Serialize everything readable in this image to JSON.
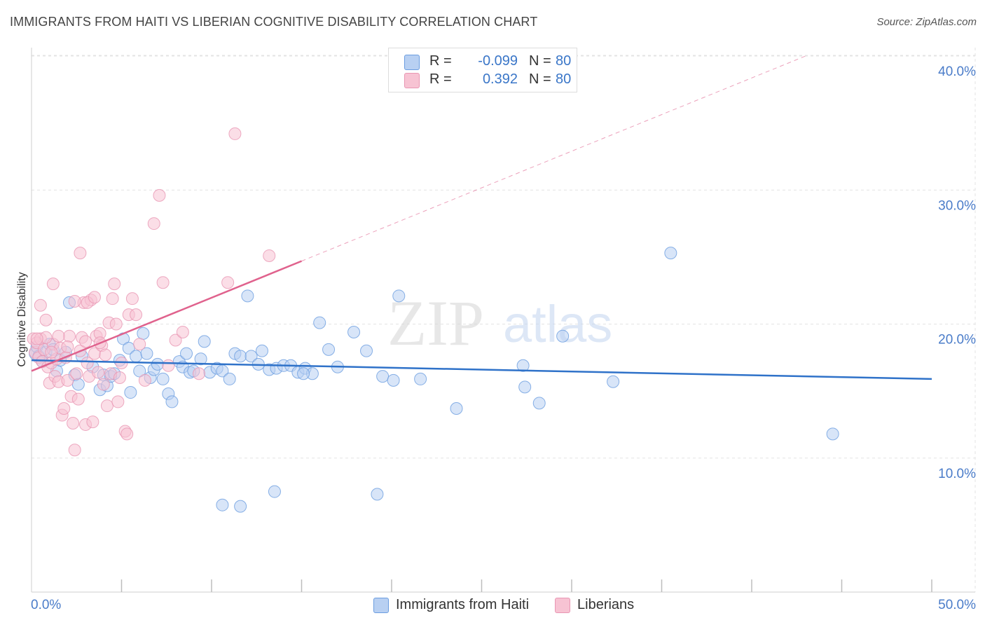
{
  "title": "IMMIGRANTS FROM HAITI VS LIBERIAN COGNITIVE DISABILITY CORRELATION CHART",
  "source": "Source: ZipAtlas.com",
  "watermark": {
    "zip": "ZIP",
    "atlas": "atlas"
  },
  "legend": {
    "rows": [
      {
        "r_label": "R =",
        "r_value": "-0.099",
        "n_label": "N =",
        "n_value": "80"
      },
      {
        "r_label": "R =",
        "r_value": "0.392",
        "n_label": "N =",
        "n_value": "80"
      }
    ]
  },
  "colors": {
    "haiti_fill": "#b8d0f2",
    "haiti_stroke": "#6b9de0",
    "haiti_line": "#2f72c9",
    "liberian_fill": "#f7c3d3",
    "liberian_stroke": "#e996b3",
    "liberian_line": "#e0628d",
    "grid": "#e3e3e3",
    "axis_label": "#4a7cc9"
  },
  "chart_data": {
    "type": "scatter",
    "xlabel": "",
    "ylabel": "Cognitive Disability",
    "xlim": [
      0,
      50
    ],
    "ylim": [
      0,
      40
    ],
    "x_tick_labels": [
      "0.0%",
      "50.0%"
    ],
    "y_ticks": [
      10,
      20,
      30,
      40
    ],
    "y_tick_labels": [
      "10.0%",
      "20.0%",
      "30.0%",
      "40.0%"
    ],
    "grid": true,
    "legend_position": "bottom",
    "series": [
      {
        "name": "Immigrants from Haiti",
        "trend": {
          "x": [
            0,
            50
          ],
          "y": [
            17.3,
            15.9
          ],
          "dashed_from": null
        },
        "points": [
          [
            0.2,
            17.8
          ],
          [
            0.3,
            18.3
          ],
          [
            0.4,
            17.6
          ],
          [
            0.6,
            17.2
          ],
          [
            0.8,
            17.9
          ],
          [
            1.0,
            18.5
          ],
          [
            1.2,
            18.1
          ],
          [
            1.4,
            16.5
          ],
          [
            1.6,
            17.3
          ],
          [
            1.9,
            17.9
          ],
          [
            2.1,
            21.6
          ],
          [
            2.4,
            16.2
          ],
          [
            2.6,
            15.5
          ],
          [
            2.8,
            17.6
          ],
          [
            3.4,
            16.8
          ],
          [
            3.8,
            15.1
          ],
          [
            4.0,
            16.2
          ],
          [
            4.2,
            15.4
          ],
          [
            4.4,
            16.1
          ],
          [
            4.6,
            16.3
          ],
          [
            4.9,
            17.3
          ],
          [
            5.1,
            18.9
          ],
          [
            5.4,
            18.2
          ],
          [
            5.5,
            14.9
          ],
          [
            5.8,
            17.6
          ],
          [
            6.0,
            16.5
          ],
          [
            6.2,
            19.3
          ],
          [
            6.4,
            17.8
          ],
          [
            6.6,
            16.0
          ],
          [
            6.8,
            16.6
          ],
          [
            7.0,
            17.0
          ],
          [
            7.3,
            15.9
          ],
          [
            7.6,
            14.8
          ],
          [
            7.8,
            14.2
          ],
          [
            8.2,
            17.2
          ],
          [
            8.4,
            16.8
          ],
          [
            8.6,
            17.8
          ],
          [
            8.8,
            16.4
          ],
          [
            9.0,
            16.5
          ],
          [
            9.4,
            17.4
          ],
          [
            9.6,
            18.7
          ],
          [
            9.9,
            16.4
          ],
          [
            10.3,
            16.7
          ],
          [
            10.6,
            16.5
          ],
          [
            11.0,
            15.9
          ],
          [
            11.3,
            17.8
          ],
          [
            11.6,
            17.6
          ],
          [
            12.0,
            22.1
          ],
          [
            12.2,
            17.6
          ],
          [
            12.6,
            17.0
          ],
          [
            12.8,
            18.0
          ],
          [
            13.2,
            16.6
          ],
          [
            13.6,
            16.7
          ],
          [
            14.0,
            16.9
          ],
          [
            14.4,
            16.9
          ],
          [
            14.8,
            16.4
          ],
          [
            15.2,
            16.7
          ],
          [
            15.6,
            16.3
          ],
          [
            16.0,
            20.1
          ],
          [
            16.5,
            18.1
          ],
          [
            17.0,
            16.8
          ],
          [
            17.9,
            19.4
          ],
          [
            18.6,
            18.0
          ],
          [
            19.5,
            16.1
          ],
          [
            20.4,
            22.1
          ],
          [
            21.6,
            15.9
          ],
          [
            23.6,
            13.7
          ],
          [
            27.3,
            16.9
          ],
          [
            27.4,
            15.3
          ],
          [
            28.2,
            14.1
          ],
          [
            29.5,
            19.1
          ],
          [
            32.3,
            15.7
          ],
          [
            35.5,
            25.3
          ],
          [
            44.5,
            11.8
          ],
          [
            15.1,
            16.3
          ],
          [
            11.6,
            6.4
          ],
          [
            10.6,
            6.5
          ],
          [
            20.1,
            15.8
          ],
          [
            13.5,
            7.5
          ],
          [
            19.2,
            7.3
          ]
        ]
      },
      {
        "name": "Liberians",
        "trend": {
          "x": [
            0,
            15
          ],
          "y": [
            16.5,
            24.7
          ],
          "dashed_to_x": 43
        },
        "points": [
          [
            0.1,
            18.9
          ],
          [
            0.2,
            17.9
          ],
          [
            0.3,
            18.6
          ],
          [
            0.4,
            17.5
          ],
          [
            0.5,
            18.9
          ],
          [
            0.6,
            17.2
          ],
          [
            0.7,
            18.1
          ],
          [
            0.8,
            20.3
          ],
          [
            0.9,
            16.8
          ],
          [
            1.0,
            15.6
          ],
          [
            1.1,
            17.1
          ],
          [
            1.2,
            18.5
          ],
          [
            1.3,
            16.1
          ],
          [
            1.4,
            17.4
          ],
          [
            1.5,
            15.7
          ],
          [
            1.6,
            18.2
          ],
          [
            1.7,
            13.2
          ],
          [
            1.8,
            13.7
          ],
          [
            1.9,
            17.5
          ],
          [
            2.0,
            15.8
          ],
          [
            2.1,
            19.1
          ],
          [
            2.2,
            14.6
          ],
          [
            2.3,
            12.6
          ],
          [
            2.4,
            10.6
          ],
          [
            2.5,
            16.3
          ],
          [
            2.6,
            14.4
          ],
          [
            2.7,
            18.0
          ],
          [
            2.8,
            19.0
          ],
          [
            2.9,
            21.6
          ],
          [
            3.0,
            12.5
          ],
          [
            3.1,
            17.1
          ],
          [
            3.2,
            16.1
          ],
          [
            3.3,
            21.8
          ],
          [
            3.4,
            12.7
          ],
          [
            3.5,
            17.8
          ],
          [
            3.6,
            19.1
          ],
          [
            3.7,
            16.4
          ],
          [
            3.8,
            19.3
          ],
          [
            3.9,
            18.4
          ],
          [
            4.0,
            15.5
          ],
          [
            4.2,
            13.9
          ],
          [
            4.3,
            20.1
          ],
          [
            4.4,
            16.3
          ],
          [
            4.5,
            21.9
          ],
          [
            4.6,
            23.0
          ],
          [
            4.7,
            20.0
          ],
          [
            4.8,
            14.2
          ],
          [
            4.9,
            16.0
          ],
          [
            5.0,
            17.1
          ],
          [
            5.2,
            12.0
          ],
          [
            5.3,
            11.8
          ],
          [
            5.4,
            20.7
          ],
          [
            5.6,
            21.9
          ],
          [
            5.8,
            20.7
          ],
          [
            6.0,
            18.5
          ],
          [
            6.3,
            15.8
          ],
          [
            6.8,
            27.5
          ],
          [
            7.1,
            29.6
          ],
          [
            7.3,
            23.1
          ],
          [
            7.6,
            16.9
          ],
          [
            8.0,
            18.8
          ],
          [
            8.4,
            19.4
          ],
          [
            9.3,
            16.3
          ],
          [
            10.9,
            23.1
          ],
          [
            11.3,
            34.2
          ],
          [
            13.2,
            25.1
          ],
          [
            0.5,
            21.4
          ],
          [
            1.2,
            23.0
          ],
          [
            2.4,
            21.7
          ],
          [
            2.7,
            25.3
          ],
          [
            3.1,
            21.6
          ],
          [
            3.5,
            22.0
          ],
          [
            1.5,
            19.1
          ],
          [
            0.8,
            19.0
          ],
          [
            0.3,
            18.9
          ],
          [
            2.0,
            18.3
          ],
          [
            3.0,
            18.7
          ],
          [
            3.8,
            18.6
          ],
          [
            1.1,
            17.9
          ],
          [
            4.1,
            17.7
          ]
        ]
      }
    ]
  }
}
